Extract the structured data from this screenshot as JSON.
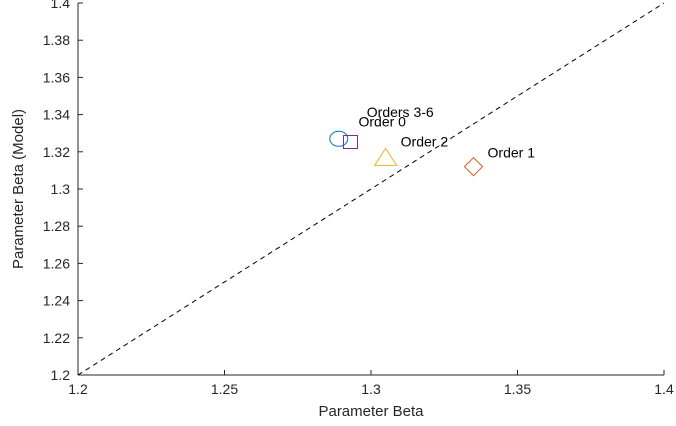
{
  "chart_data": {
    "type": "scatter",
    "title": "",
    "xlabel": "Parameter Beta",
    "ylabel": "Parameter Beta (Model)",
    "xlim": [
      1.2,
      1.4
    ],
    "ylim": [
      1.2,
      1.4
    ],
    "x_ticks": [
      "1.2",
      "1.25",
      "1.3",
      "1.35",
      "1.4"
    ],
    "y_ticks": [
      "1.2",
      "1.22",
      "1.24",
      "1.26",
      "1.28",
      "1.3",
      "1.32",
      "1.34",
      "1.36",
      "1.38",
      "1.4"
    ],
    "grid": false,
    "reference_line": {
      "style": "dashed",
      "from": [
        1.2,
        1.2
      ],
      "to": [
        1.4,
        1.4
      ]
    },
    "points": [
      {
        "label": "Orders 3-6",
        "x": 1.289,
        "y": 1.327,
        "marker": "circle",
        "color": "#0072BD"
      },
      {
        "label": "Order 0",
        "x": 1.293,
        "y": 1.325,
        "marker": "square",
        "color": "#7E2F8E"
      },
      {
        "label": "Order 2",
        "x": 1.305,
        "y": 1.317,
        "marker": "triangle",
        "color": "#EDB120"
      },
      {
        "label": "Order 1",
        "x": 1.335,
        "y": 1.312,
        "marker": "diamond",
        "color": "#D95319"
      }
    ]
  }
}
